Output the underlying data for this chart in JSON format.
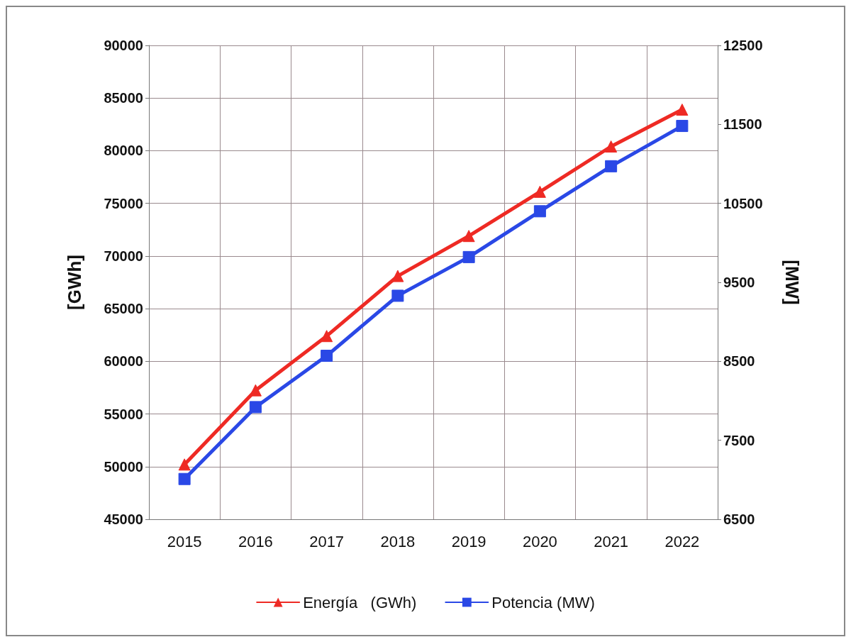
{
  "chart_data": {
    "type": "line",
    "categories": [
      "2015",
      "2016",
      "2017",
      "2018",
      "2019",
      "2020",
      "2021",
      "2022"
    ],
    "ylabel": "[GWh]",
    "y2label": "[MW]",
    "series": [
      {
        "name": "Energía   (GWh)",
        "color": "#ee2a24",
        "marker": "triangle",
        "values": [
          50200,
          57250,
          62400,
          68100,
          71900,
          76100,
          80400,
          83900
        ]
      },
      {
        "name": "Potencia (MW)",
        "color": "#2a48e6",
        "marker": "square",
        "axis": "y2",
        "values": [
          7010,
          7920,
          8570,
          9330,
          9820,
          10400,
          10970,
          11480
        ]
      }
    ],
    "ylim": [
      45000,
      90000
    ],
    "yticks": [
      45000,
      50000,
      55000,
      60000,
      65000,
      70000,
      75000,
      80000,
      85000,
      90000
    ],
    "y2lim": [
      6500,
      12500
    ],
    "y2ticks": [
      6500,
      7500,
      8500,
      9500,
      10500,
      11500,
      12500
    ],
    "grid": true,
    "legend": "bottom",
    "line_style": "solid"
  }
}
